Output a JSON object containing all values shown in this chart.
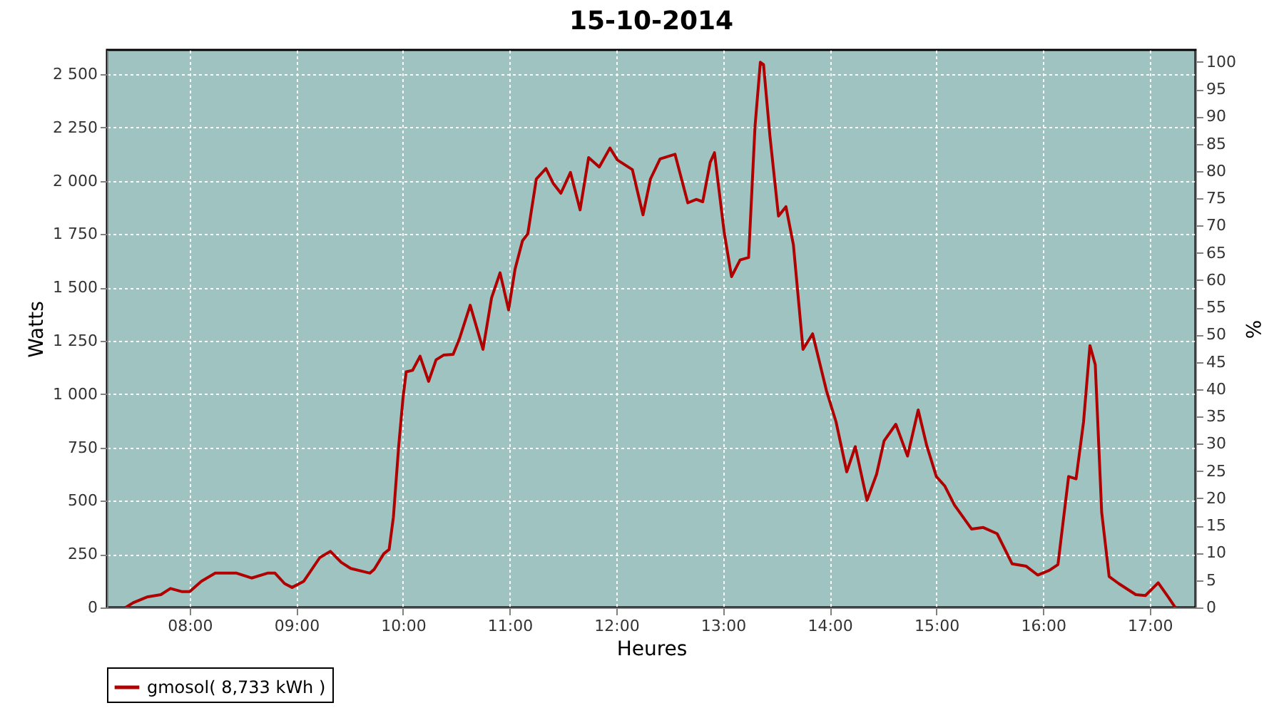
{
  "chart_data": {
    "type": "line",
    "title": "15-10-2014",
    "xlabel": "Heures",
    "ylabel": "Watts",
    "y2label": "%",
    "x": [
      7.4,
      7.47,
      7.6,
      7.73,
      7.82,
      7.93,
      8.0,
      8.11,
      8.24,
      8.44,
      8.58,
      8.73,
      8.8,
      8.89,
      8.96,
      9.07,
      9.22,
      9.32,
      9.42,
      9.51,
      9.69,
      9.73,
      9.82,
      9.87,
      9.91,
      9.96,
      10.0,
      10.03,
      10.09,
      10.16,
      10.24,
      10.31,
      10.38,
      10.47,
      10.53,
      10.63,
      10.75,
      10.83,
      10.91,
      10.99,
      11.05,
      11.12,
      11.17,
      11.25,
      11.34,
      11.41,
      11.48,
      11.57,
      11.66,
      11.74,
      11.84,
      11.94,
      12.01,
      12.15,
      12.25,
      12.32,
      12.41,
      12.55,
      12.67,
      12.75,
      12.81,
      12.88,
      12.92,
      13.01,
      13.08,
      13.16,
      13.24,
      13.3,
      13.35,
      13.38,
      13.44,
      13.52,
      13.59,
      13.66,
      13.75,
      13.84,
      13.97,
      14.06,
      14.16,
      14.24,
      14.35,
      14.44,
      14.51,
      14.62,
      14.73,
      14.83,
      14.91,
      15.0,
      15.08,
      15.17,
      15.33,
      15.44,
      15.57,
      15.71,
      15.84,
      15.95,
      16.06,
      16.14,
      16.24,
      16.31,
      16.38,
      16.44,
      16.49,
      16.55,
      16.62,
      16.71,
      16.87,
      16.96,
      17.08,
      17.18,
      17.24
    ],
    "series": [
      {
        "name": "gmosol( 8,733 kWh )",
        "color": "#b00000",
        "values": [
          0,
          22,
          49,
          60,
          89,
          74,
          74,
          123,
          161,
          161,
          138,
          161,
          161,
          112,
          94,
          123,
          234,
          263,
          212,
          183,
          161,
          179,
          252,
          272,
          424,
          759,
          982,
          1105,
          1112,
          1178,
          1060,
          1161,
          1183,
          1187,
          1261,
          1417,
          1210,
          1451,
          1569,
          1395,
          1585,
          1719,
          1752,
          2009,
          2058,
          1987,
          1942,
          2040,
          1864,
          2109,
          2065,
          2154,
          2098,
          2053,
          1841,
          2009,
          2103,
          2125,
          1897,
          1913,
          1902,
          2087,
          2132,
          1763,
          1551,
          1629,
          1641,
          2254,
          2556,
          2545,
          2210,
          1835,
          1879,
          1700,
          1210,
          1283,
          1016,
          870,
          636,
          754,
          502,
          625,
          781,
          859,
          710,
          926,
          759,
          614,
          569,
          480,
          368,
          375,
          346,
          205,
          194,
          152,
          174,
          201,
          614,
          603,
          870,
          1228,
          1138,
          446,
          145,
          112,
          60,
          56,
          116,
          45,
          0
        ]
      }
    ],
    "xlim": [
      7.225,
      17.43
    ],
    "xticks": [
      {
        "value": 8,
        "label": "08:00"
      },
      {
        "value": 9,
        "label": "09:00"
      },
      {
        "value": 10,
        "label": "10:00"
      },
      {
        "value": 11,
        "label": "11:00"
      },
      {
        "value": 12,
        "label": "12:00"
      },
      {
        "value": 13,
        "label": "13:00"
      },
      {
        "value": 14,
        "label": "14:00"
      },
      {
        "value": 15,
        "label": "15:00"
      },
      {
        "value": 16,
        "label": "16:00"
      },
      {
        "value": 17,
        "label": "17:00"
      }
    ],
    "ylim": [
      0,
      2614
    ],
    "yticks": [
      0,
      250,
      500,
      750,
      {
        "value": 1000,
        "label": "1 000"
      },
      {
        "value": 1250,
        "label": "1 250"
      },
      {
        "value": 1500,
        "label": "1 500"
      },
      {
        "value": 1750,
        "label": "1 750"
      },
      {
        "value": 2000,
        "label": "2 000"
      },
      {
        "value": 2250,
        "label": "2 250"
      },
      {
        "value": 2500,
        "label": "2 500"
      }
    ],
    "y2lim": [
      0,
      102.2
    ],
    "y2ticks": [
      0,
      5,
      10,
      15,
      20,
      25,
      30,
      35,
      40,
      45,
      50,
      55,
      60,
      65,
      70,
      75,
      80,
      85,
      90,
      95,
      100
    ],
    "grid": true,
    "legend": "bottom",
    "marker": "none",
    "line_style": "solid"
  }
}
